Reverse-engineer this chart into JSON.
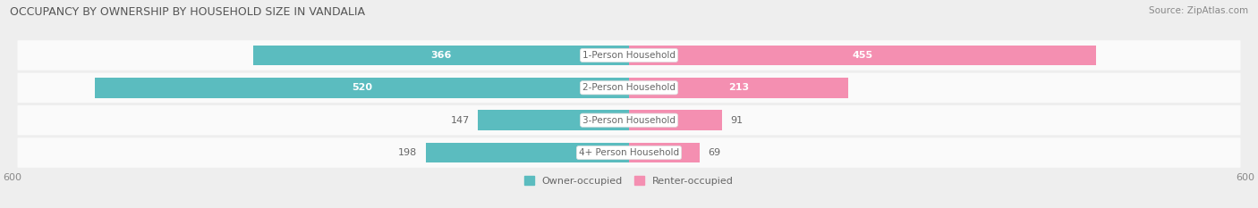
{
  "title": "OCCUPANCY BY OWNERSHIP BY HOUSEHOLD SIZE IN VANDALIA",
  "source": "Source: ZipAtlas.com",
  "categories": [
    "1-Person Household",
    "2-Person Household",
    "3-Person Household",
    "4+ Person Household"
  ],
  "owner_values": [
    366,
    520,
    147,
    198
  ],
  "renter_values": [
    455,
    213,
    91,
    69
  ],
  "axis_max": 600,
  "owner_color": "#5bbcbf",
  "renter_color": "#f48fb1",
  "bg_color": "#eeeeee",
  "row_bg_color": "#fafafa",
  "title_fontsize": 9,
  "source_fontsize": 7.5,
  "bar_label_fontsize": 8,
  "legend_fontsize": 8,
  "axis_label_fontsize": 8,
  "category_fontsize": 7.5
}
